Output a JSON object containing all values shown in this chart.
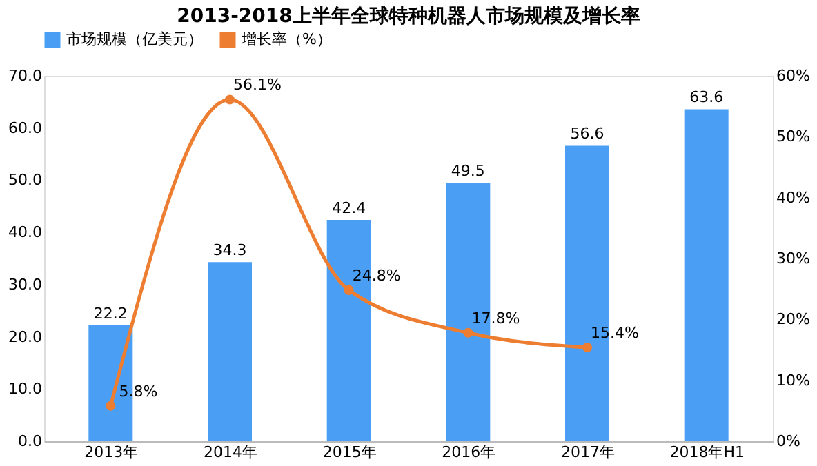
{
  "chart_data": {
    "type": "bar",
    "title": "2013-2018上半年全球特种机器人市场规模及增长率",
    "categories": [
      "2013年",
      "2014年",
      "2015年",
      "2016年",
      "2017年",
      "2018年H1"
    ],
    "series": [
      {
        "name": "市场规模（亿美元）",
        "color": "#4a9ff5",
        "values": [
          22.2,
          34.3,
          42.4,
          49.5,
          56.6,
          63.6
        ],
        "data_labels": true
      },
      {
        "name": "增长率（%）",
        "type": "line",
        "axis": "y2",
        "color": "#ed7d31",
        "marker": "circle",
        "values": [
          5.8,
          56.1,
          24.8,
          17.8,
          15.4,
          null
        ],
        "value_labels": [
          "5.8%",
          "56.1%",
          "24.8%",
          "17.8%",
          "15.4%",
          null
        ]
      }
    ],
    "ylim": [
      0,
      70
    ],
    "yticks": [
      {
        "value": 0,
        "label": "0.0"
      },
      {
        "value": 10,
        "label": "10.0"
      },
      {
        "value": 20,
        "label": "20.0"
      },
      {
        "value": 30,
        "label": "30.0"
      },
      {
        "value": 40,
        "label": "40.0"
      },
      {
        "value": 50,
        "label": "50.0"
      },
      {
        "value": 60,
        "label": "60.0"
      },
      {
        "value": 70,
        "label": "70.0"
      }
    ],
    "y2lim": [
      0,
      60
    ],
    "y2ticks": [
      {
        "value": 0,
        "label": "0%"
      },
      {
        "value": 10,
        "label": "10%"
      },
      {
        "value": 20,
        "label": "20%"
      },
      {
        "value": 30,
        "label": "30%"
      },
      {
        "value": 40,
        "label": "40%"
      },
      {
        "value": 50,
        "label": "50%"
      },
      {
        "value": 60,
        "label": "60%"
      }
    ],
    "legend": "top",
    "grid": false
  }
}
